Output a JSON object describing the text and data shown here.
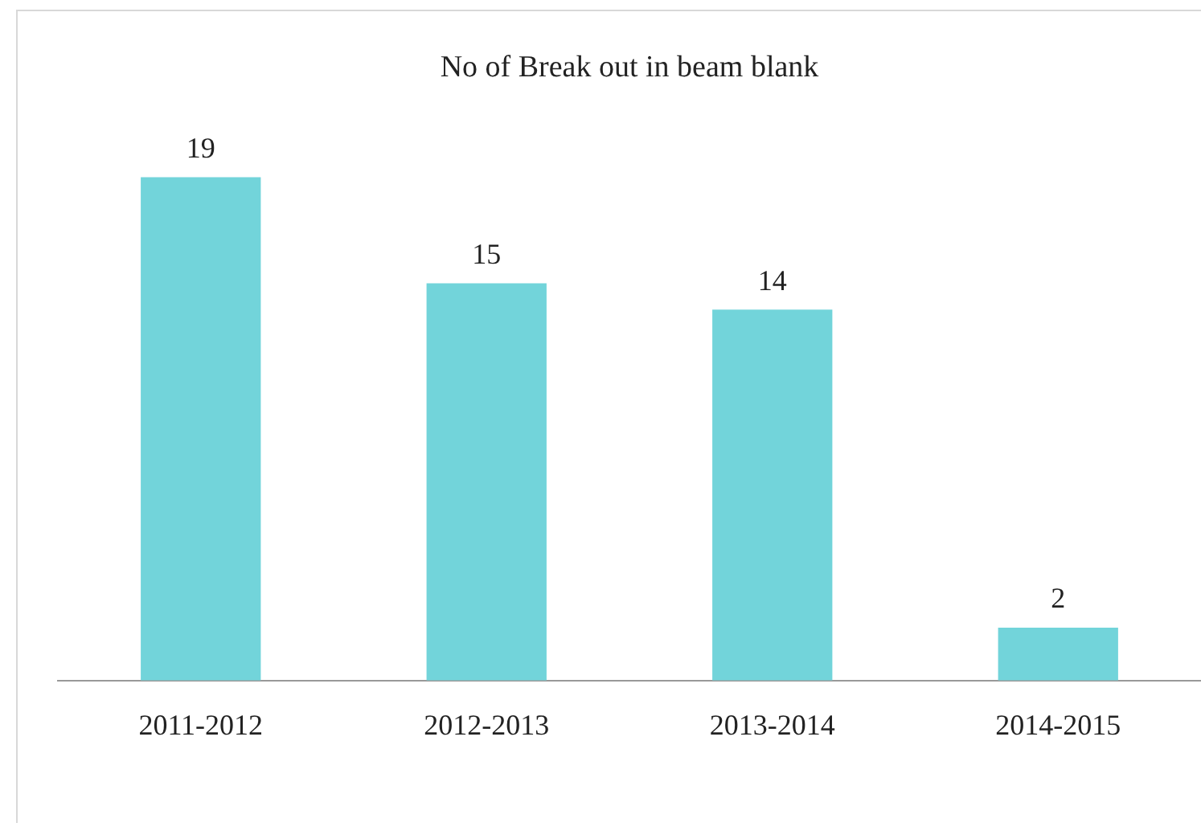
{
  "chart_data": {
    "type": "bar",
    "title": "No of Break out in beam blank",
    "categories": [
      "2011-2012",
      "2012-2013",
      "2013-2014",
      "2014-2015"
    ],
    "values": [
      19,
      15,
      14,
      2
    ],
    "color": "#72d4da",
    "data_labels": true,
    "grid": false,
    "legend": false
  }
}
